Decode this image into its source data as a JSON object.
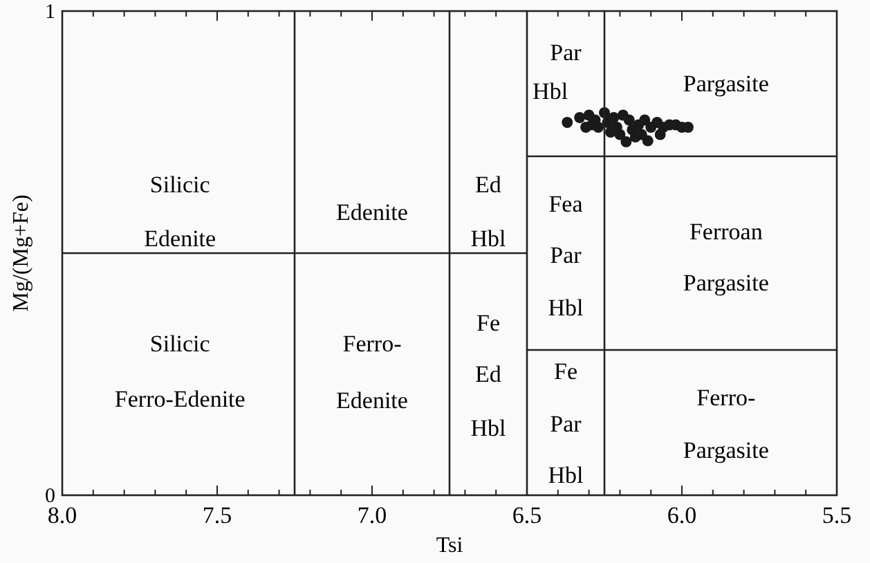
{
  "chart_data": {
    "type": "scatter",
    "xlabel": "Tsi",
    "ylabel": "Mg/(Mg+Fe)",
    "xlim": [
      8.0,
      5.5
    ],
    "ylim": [
      0,
      1
    ],
    "xticks": [
      "8.0",
      {
        "value": 7.9,
        "label": null
      },
      {
        "value": 7.8,
        "label": null
      },
      {
        "value": 7.7,
        "label": null
      },
      {
        "value": 7.6,
        "label": null
      },
      {
        "value": 7.5,
        "label": "7.5"
      },
      {
        "value": 7.4,
        "label": null
      },
      {
        "value": 7.3,
        "label": null
      },
      {
        "value": 7.2,
        "label": null
      },
      {
        "value": 7.1,
        "label": null
      },
      {
        "value": 7.0,
        "label": "7.0"
      },
      {
        "value": 6.9,
        "label": null
      },
      {
        "value": 6.8,
        "label": null
      },
      {
        "value": 6.7,
        "label": null
      },
      {
        "value": 6.6,
        "label": null
      },
      {
        "value": 6.5,
        "label": "6.5"
      },
      {
        "value": 6.4,
        "label": null
      },
      {
        "value": 6.3,
        "label": null
      },
      {
        "value": 6.2,
        "label": null
      },
      {
        "value": 6.1,
        "label": null
      },
      {
        "value": 6.0,
        "label": "6.0"
      },
      {
        "value": 5.9,
        "label": null
      },
      {
        "value": 5.8,
        "label": null
      },
      {
        "value": 5.7,
        "label": null
      },
      {
        "value": 5.6,
        "label": null
      },
      {
        "value": 5.5,
        "label": "5.5"
      }
    ],
    "yticks": [
      0,
      1
    ],
    "grid": false,
    "marker": "circle",
    "series": [
      {
        "color": "#1a1a1a",
        "x": [
          6.37,
          6.33,
          6.31,
          6.3,
          6.28,
          6.27,
          6.25,
          6.24,
          6.22,
          6.21,
          6.2,
          6.19,
          6.17,
          6.16,
          6.15,
          6.14,
          6.12,
          6.11,
          6.1,
          6.08,
          6.07,
          6.06,
          6.04,
          6.02,
          6.0,
          5.98,
          6.18,
          6.29,
          6.23,
          6.13
        ],
        "values": [
          0.77,
          0.78,
          0.76,
          0.785,
          0.775,
          0.76,
          0.79,
          0.77,
          0.78,
          0.76,
          0.745,
          0.785,
          0.775,
          0.755,
          0.74,
          0.765,
          0.775,
          0.732,
          0.76,
          0.77,
          0.745,
          0.76,
          0.765,
          0.765,
          0.76,
          0.76,
          0.73,
          0.765,
          0.75,
          0.745
        ]
      },
      {
        "type": "line",
        "marker": "none",
        "color": "#222222",
        "x": [
          7.25,
          7.25
        ],
        "values": [
          0,
          1
        ]
      },
      {
        "type": "line",
        "marker": "none",
        "color": "#222222",
        "x": [
          6.75,
          6.75
        ],
        "values": [
          0,
          1
        ]
      },
      {
        "type": "line",
        "marker": "none",
        "color": "#222222",
        "x": [
          6.5,
          6.5
        ],
        "values": [
          0,
          1
        ]
      },
      {
        "type": "line",
        "marker": "none",
        "color": "#222222",
        "x": [
          6.25,
          6.25
        ],
        "values": [
          0,
          1
        ]
      },
      {
        "type": "line",
        "marker": "none",
        "color": "#222222",
        "x": [
          8.0,
          6.5
        ],
        "values": [
          0.5,
          0.5
        ]
      },
      {
        "type": "line",
        "marker": "none",
        "color": "#222222",
        "x": [
          6.5,
          5.5
        ],
        "values": [
          0.7,
          0.7
        ]
      },
      {
        "type": "line",
        "marker": "none",
        "color": "#222222",
        "x": [
          6.5,
          5.5
        ],
        "values": [
          0.3,
          0.3
        ]
      }
    ],
    "annotations": [
      "Silicic",
      "Edenite",
      "Edenite",
      "Ed",
      "Hbl",
      "Par",
      "Hbl",
      "Pargasite",
      "Fea",
      "Par",
      "Hbl",
      "Ferroan",
      "Pargasite",
      "Silicic",
      "Ferro-Edenite",
      "Ferro-",
      "Edenite",
      "Fe",
      "Ed",
      "Hbl",
      "Fe",
      "Par",
      "Hbl",
      "Ferro-",
      "Pargasite"
    ]
  }
}
